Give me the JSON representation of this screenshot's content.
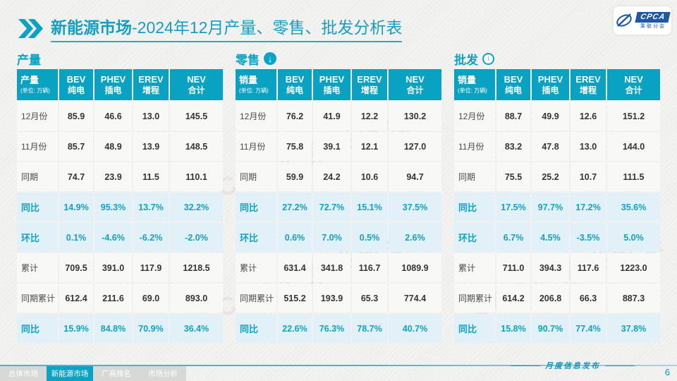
{
  "slide": {
    "title_prefix": "新能源市场",
    "title_rest": "-2024年12月产量、零售、批发分析表",
    "footer_caption": "月度信息发布",
    "page_number": "6"
  },
  "logo": {
    "name": "CPCA",
    "sub": "乘联分会"
  },
  "watermark_text": "CPCA 乘联分会",
  "colors": {
    "teal": "#0ba3c4",
    "header_bg": "#09a2c2",
    "row_highlight": "#e2f1f8"
  },
  "nav_tabs": [
    {
      "label": "总体市场",
      "active": false
    },
    {
      "label": "新能源市场",
      "active": true
    },
    {
      "label": "厂商排名",
      "active": false
    },
    {
      "label": "市场分析",
      "active": false
    }
  ],
  "tables": [
    {
      "section": "产量",
      "arrow": "none",
      "corner_title": "产量",
      "corner_unit": "(单位: 万辆)",
      "columns": [
        {
          "en": "BEV",
          "zh": "纯电"
        },
        {
          "en": "PHEV",
          "zh": "插电"
        },
        {
          "en": "EREV",
          "zh": "增程"
        },
        {
          "en": "NEV",
          "zh": "合计"
        }
      ],
      "rows": [
        {
          "label": "12月份",
          "values": [
            "85.9",
            "46.6",
            "13.0",
            "145.5"
          ],
          "highlight": false
        },
        {
          "label": "11月份",
          "values": [
            "85.7",
            "48.9",
            "13.9",
            "148.5"
          ],
          "highlight": false
        },
        {
          "label": "同期",
          "values": [
            "74.7",
            "23.9",
            "11.5",
            "110.1"
          ],
          "highlight": false
        },
        {
          "label": "同比",
          "values": [
            "14.9%",
            "95.3%",
            "13.7%",
            "32.2%"
          ],
          "highlight": true
        },
        {
          "label": "环比",
          "values": [
            "0.1%",
            "-4.6%",
            "-6.2%",
            "-2.0%"
          ],
          "highlight": true
        },
        {
          "label": "累计",
          "values": [
            "709.5",
            "391.0",
            "117.9",
            "1218.5"
          ],
          "highlight": false
        },
        {
          "label": "同期累计",
          "values": [
            "612.4",
            "211.6",
            "69.0",
            "893.0"
          ],
          "highlight": false
        },
        {
          "label": "同比",
          "values": [
            "15.9%",
            "84.8%",
            "70.9%",
            "36.4%"
          ],
          "highlight": true
        }
      ]
    },
    {
      "section": "零售",
      "arrow": "filled",
      "corner_title": "销量",
      "corner_unit": "(单位: 万辆)",
      "columns": [
        {
          "en": "BEV",
          "zh": "纯电"
        },
        {
          "en": "PHEV",
          "zh": "插电"
        },
        {
          "en": "EREV",
          "zh": "增程"
        },
        {
          "en": "NEV",
          "zh": "合计"
        }
      ],
      "rows": [
        {
          "label": "12月份",
          "values": [
            "76.2",
            "41.9",
            "12.2",
            "130.2"
          ],
          "highlight": false
        },
        {
          "label": "11月份",
          "values": [
            "75.8",
            "39.1",
            "12.1",
            "127.0"
          ],
          "highlight": false
        },
        {
          "label": "同期",
          "values": [
            "59.9",
            "24.2",
            "10.6",
            "94.7"
          ],
          "highlight": false
        },
        {
          "label": "同比",
          "values": [
            "27.2%",
            "72.7%",
            "15.1%",
            "37.5%"
          ],
          "highlight": true
        },
        {
          "label": "环比",
          "values": [
            "0.6%",
            "7.0%",
            "0.5%",
            "2.6%"
          ],
          "highlight": true
        },
        {
          "label": "累计",
          "values": [
            "631.4",
            "341.8",
            "116.7",
            "1089.9"
          ],
          "highlight": false
        },
        {
          "label": "同期累计",
          "values": [
            "515.2",
            "193.9",
            "65.3",
            "774.4"
          ],
          "highlight": false
        },
        {
          "label": "同比",
          "values": [
            "22.6%",
            "76.3%",
            "78.7%",
            "40.7%"
          ],
          "highlight": true
        }
      ]
    },
    {
      "section": "批发",
      "arrow": "outline",
      "corner_title": "销量",
      "corner_unit": "(单位: 万辆)",
      "columns": [
        {
          "en": "BEV",
          "zh": "纯电"
        },
        {
          "en": "PHEV",
          "zh": "插电"
        },
        {
          "en": "EREV",
          "zh": "增程"
        },
        {
          "en": "NEV",
          "zh": "合计"
        }
      ],
      "rows": [
        {
          "label": "12月份",
          "values": [
            "88.7",
            "49.9",
            "12.6",
            "151.2"
          ],
          "highlight": false
        },
        {
          "label": "11月份",
          "values": [
            "83.2",
            "47.8",
            "13.0",
            "144.0"
          ],
          "highlight": false
        },
        {
          "label": "同期",
          "values": [
            "75.5",
            "25.2",
            "10.7",
            "111.5"
          ],
          "highlight": false
        },
        {
          "label": "同比",
          "values": [
            "17.5%",
            "97.7%",
            "17.2%",
            "35.6%"
          ],
          "highlight": true
        },
        {
          "label": "环比",
          "values": [
            "6.7%",
            "4.5%",
            "-3.5%",
            "5.0%"
          ],
          "highlight": true
        },
        {
          "label": "累计",
          "values": [
            "711.0",
            "394.3",
            "117.6",
            "1223.0"
          ],
          "highlight": false
        },
        {
          "label": "同期累计",
          "values": [
            "614.2",
            "206.8",
            "66.3",
            "887.3"
          ],
          "highlight": false
        },
        {
          "label": "同比",
          "values": [
            "15.8%",
            "90.7%",
            "77.4%",
            "37.8%"
          ],
          "highlight": true
        }
      ]
    }
  ]
}
